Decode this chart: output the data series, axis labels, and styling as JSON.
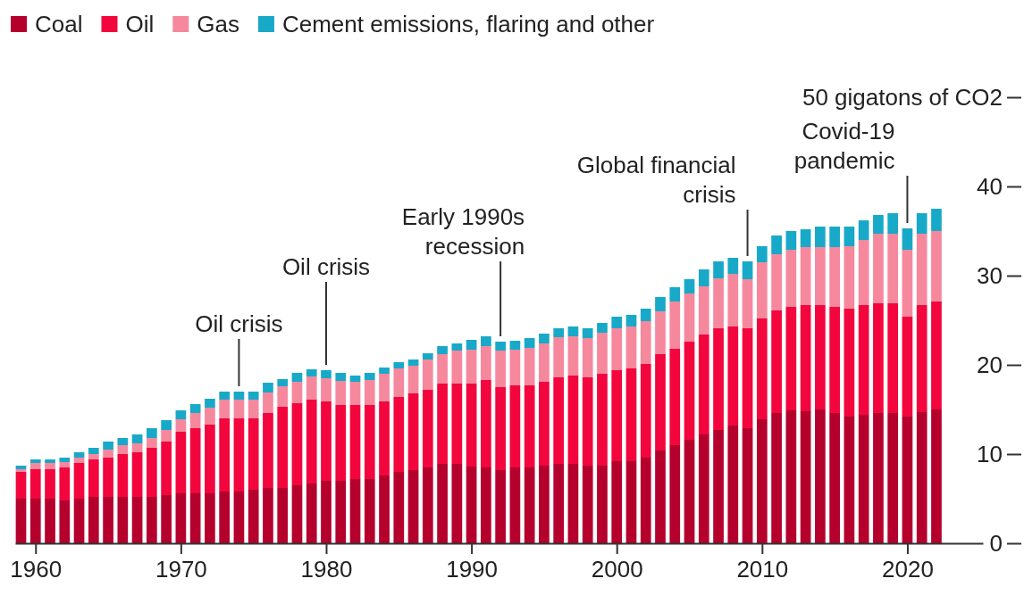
{
  "chart_data": {
    "type": "bar",
    "stacked": true,
    "x": [
      1959,
      1960,
      1961,
      1962,
      1963,
      1964,
      1965,
      1966,
      1967,
      1968,
      1969,
      1970,
      1971,
      1972,
      1973,
      1974,
      1975,
      1976,
      1977,
      1978,
      1979,
      1980,
      1981,
      1982,
      1983,
      1984,
      1985,
      1986,
      1987,
      1988,
      1989,
      1990,
      1991,
      1992,
      1993,
      1994,
      1995,
      1996,
      1997,
      1998,
      1999,
      2000,
      2001,
      2002,
      2003,
      2004,
      2005,
      2006,
      2007,
      2008,
      2009,
      2010,
      2011,
      2012,
      2013,
      2014,
      2015,
      2016,
      2017,
      2018,
      2019,
      2020,
      2021,
      2022
    ],
    "series": [
      {
        "name": "Coal",
        "color": "#b5002d",
        "values": [
          5.0,
          5.0,
          5.0,
          4.8,
          5.0,
          5.2,
          5.2,
          5.2,
          5.2,
          5.2,
          5.4,
          5.6,
          5.6,
          5.6,
          5.8,
          5.8,
          6.0,
          6.2,
          6.2,
          6.5,
          6.7,
          7.0,
          7.0,
          7.2,
          7.2,
          7.6,
          8.0,
          8.2,
          8.5,
          8.9,
          8.9,
          8.6,
          8.5,
          8.2,
          8.5,
          8.5,
          8.7,
          8.9,
          8.9,
          8.7,
          8.7,
          9.2,
          9.2,
          9.6,
          10.4,
          11.0,
          11.6,
          12.2,
          12.7,
          13.2,
          12.9,
          13.9,
          14.6,
          14.9,
          14.8,
          15.0,
          14.6,
          14.2,
          14.4,
          14.6,
          14.6,
          14.2,
          14.7,
          15.0
        ]
      },
      {
        "name": "Oil",
        "color": "#f2063d",
        "values": [
          3.0,
          3.3,
          3.3,
          3.7,
          4.0,
          4.2,
          4.4,
          4.8,
          5.0,
          5.5,
          6.0,
          6.9,
          7.3,
          7.7,
          8.2,
          8.2,
          8.0,
          8.4,
          9.1,
          9.2,
          9.4,
          8.9,
          8.5,
          8.3,
          8.3,
          8.3,
          8.4,
          8.6,
          8.7,
          9.0,
          9.0,
          9.3,
          9.8,
          9.3,
          9.2,
          9.2,
          9.4,
          9.7,
          9.9,
          9.9,
          10.3,
          10.2,
          10.4,
          10.5,
          10.8,
          10.8,
          11.0,
          11.2,
          11.4,
          11.1,
          11.2,
          11.3,
          11.5,
          11.6,
          11.9,
          11.7,
          11.9,
          12.1,
          12.3,
          12.3,
          12.3,
          11.2,
          12.0,
          12.1
        ]
      },
      {
        "name": "Gas",
        "color": "#f6889e",
        "values": [
          0.3,
          0.7,
          0.7,
          0.6,
          0.6,
          0.6,
          0.9,
          1.0,
          1.0,
          1.1,
          1.3,
          1.4,
          1.7,
          1.9,
          2.1,
          2.1,
          2.1,
          2.3,
          2.3,
          2.4,
          2.6,
          2.6,
          2.7,
          2.6,
          2.8,
          3.1,
          3.2,
          3.1,
          3.4,
          3.3,
          3.7,
          3.8,
          3.8,
          4.1,
          4.0,
          4.2,
          4.3,
          4.5,
          4.4,
          4.4,
          4.6,
          4.7,
          4.7,
          4.8,
          4.8,
          5.3,
          5.4,
          5.4,
          5.6,
          5.9,
          5.5,
          6.3,
          6.3,
          6.4,
          6.5,
          6.5,
          6.7,
          7.0,
          7.3,
          7.8,
          7.8,
          7.5,
          8.0,
          7.9
        ]
      },
      {
        "name": "Cement emissions, flaring and other",
        "color": "#19a9c8",
        "values": [
          0.4,
          0.4,
          0.4,
          0.5,
          0.6,
          0.7,
          0.9,
          0.8,
          1.0,
          1.1,
          1.1,
          1.0,
          1.0,
          1.0,
          0.9,
          0.9,
          0.9,
          1.1,
          0.8,
          1.0,
          0.8,
          0.9,
          0.9,
          0.7,
          0.8,
          0.7,
          0.7,
          0.7,
          0.7,
          0.9,
          0.8,
          1.1,
          1.1,
          1.0,
          1.0,
          1.1,
          1.1,
          1.0,
          1.1,
          1.1,
          1.1,
          1.3,
          1.3,
          1.4,
          1.6,
          1.6,
          1.6,
          1.9,
          1.9,
          1.8,
          2.0,
          1.8,
          2.1,
          2.1,
          2.0,
          2.3,
          2.3,
          2.2,
          2.2,
          2.1,
          2.3,
          2.4,
          2.3,
          2.5
        ]
      }
    ],
    "xlim": [
      1958.6,
      2025.2
    ],
    "xticks": [
      1960,
      1970,
      1980,
      1990,
      2000,
      2010,
      2020
    ],
    "ylim": [
      0,
      50
    ],
    "yticks": [
      0,
      10,
      20,
      30,
      40,
      {
        "value": 50,
        "label": "50 gigatons of CO2"
      }
    ],
    "legend": "top left",
    "annotations": [
      {
        "text": "Oil crisis",
        "x": 1974,
        "y": 17.0
      },
      {
        "text": "Oil crisis",
        "x": 1980,
        "y": 19.4
      },
      {
        "text": "Early 1990s recession",
        "x": 1992,
        "y": 22.6
      },
      {
        "text": "Global financial crisis",
        "x": 2009,
        "y": 31.6
      },
      {
        "text": "Covid-19 pandemic",
        "x": 2020,
        "y": 35.3
      }
    ]
  }
}
